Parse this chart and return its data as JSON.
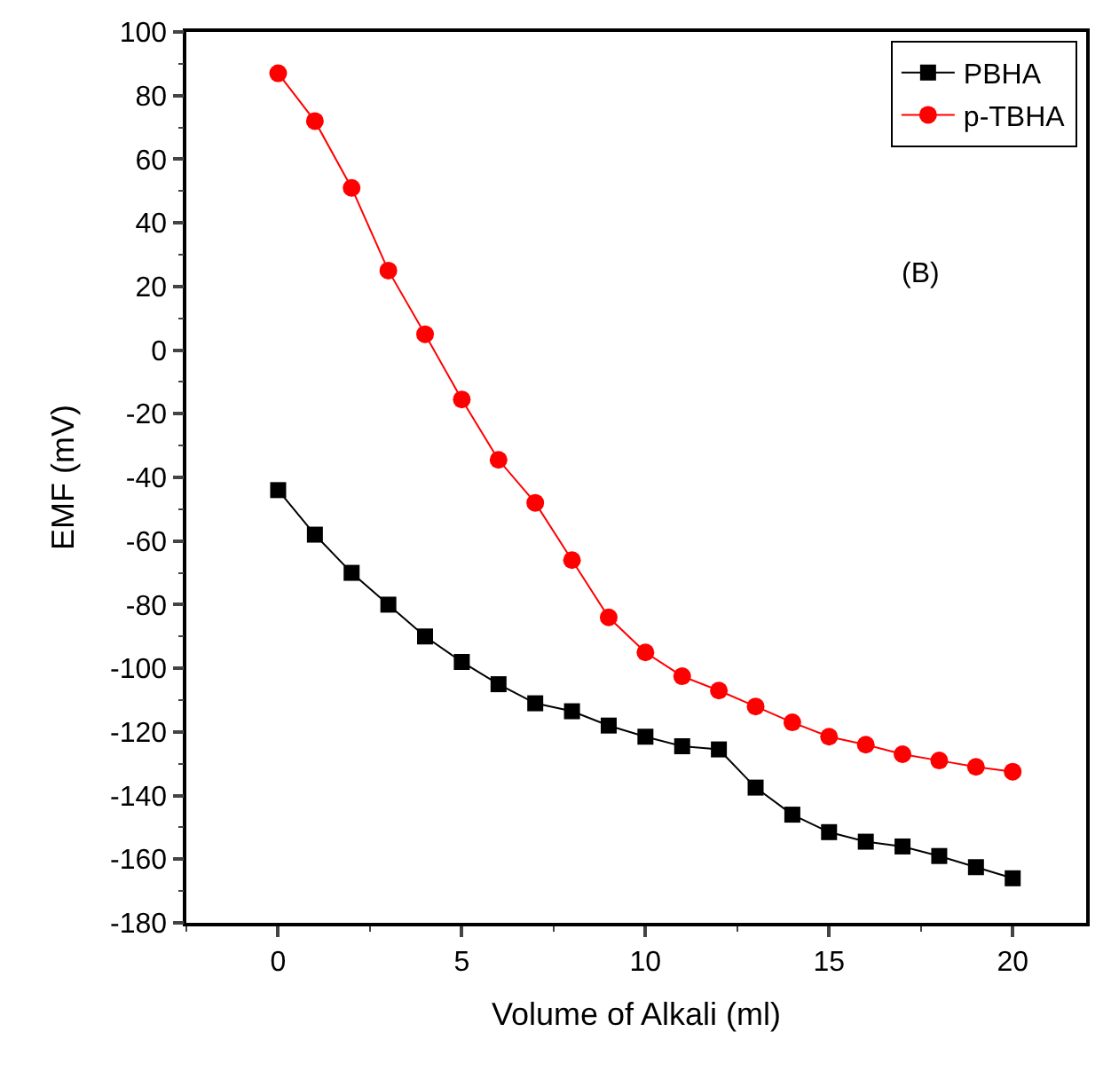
{
  "chart_data": {
    "type": "line",
    "xlabel": "Volume of Alkali (ml)",
    "ylabel": "EMF (mV)",
    "annotations": [
      "(B)"
    ],
    "x": [
      0,
      1,
      2,
      3,
      4,
      5,
      6,
      7,
      8,
      9,
      10,
      11,
      12,
      13,
      14,
      15,
      16,
      17,
      18,
      19,
      20
    ],
    "xlim": [
      -2.5,
      22
    ],
    "xticks": [
      0,
      5,
      10,
      15,
      20
    ],
    "ylim": [
      -180,
      100
    ],
    "yticks": [
      -180,
      -160,
      -140,
      -120,
      -100,
      -80,
      -60,
      -40,
      -20,
      0,
      20,
      40,
      60,
      80,
      100
    ],
    "legend": "top right",
    "line_style": "solid",
    "series": [
      {
        "name": "PBHA",
        "color": "#000000",
        "marker": "square",
        "values": [
          -44,
          -58,
          -70,
          -80,
          -90,
          -98,
          -105,
          -111,
          -113.5,
          -118,
          -121.5,
          -124.5,
          -125.5,
          -137.5,
          -146,
          -151.5,
          -154.5,
          -156,
          -159,
          -162.5,
          -166
        ]
      },
      {
        "name": "p-TBHA",
        "color": "#ff0000",
        "marker": "circle",
        "values": [
          87,
          72,
          51,
          25,
          5,
          -15.5,
          -34.5,
          -48,
          -66,
          -84,
          -95,
          -102.5,
          -107,
          -112,
          -117,
          -121.5,
          -124,
          -127,
          -129,
          -131,
          -132.5
        ]
      }
    ]
  }
}
